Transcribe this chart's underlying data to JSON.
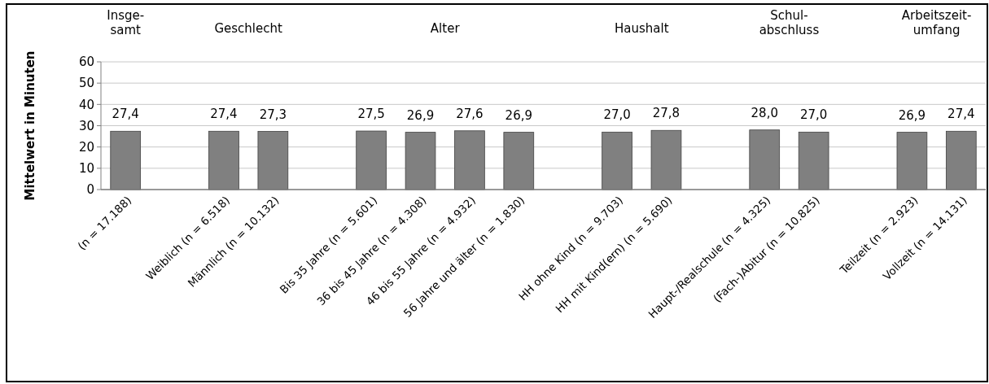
{
  "chart_data": {
    "type": "bar",
    "ylabel": "Mittelwert in Minuten",
    "categories": [
      "(n = 17.188)",
      null,
      "Weiblich (n = 6.518)",
      "Männlich (n = 10.132)",
      null,
      "Bis 35 Jahre (n = 5.601)",
      "36 bis 45 Jahre (n = 4.308)",
      "46 bis 55 Jahre (n = 4.932)",
      "56 Jahre und älter  (n = 1.830)",
      null,
      "HH ohne Kind (n = 9.703)",
      "HH mit Kind(ern) (n = 5.690)",
      null,
      "Haupt-/Realschule (n = 4.325)",
      "(Fach-)Abitur (n = 10.825)",
      null,
      "Teilzeit (n = 2.923)",
      "Vollzeit (n = 14.131)"
    ],
    "values": [
      27.4,
      null,
      27.4,
      27.3,
      null,
      27.5,
      26.9,
      27.6,
      26.9,
      null,
      27.0,
      27.8,
      null,
      28.0,
      27.0,
      null,
      26.9,
      27.4
    ],
    "value_labels": [
      "27,4",
      null,
      "27,4",
      "27,3",
      null,
      "27,5",
      "26,9",
      "27,6",
      "26,9",
      null,
      "27,0",
      "27,8",
      null,
      "28,0",
      "27,0",
      null,
      "26,9",
      "27,4"
    ],
    "color": "#808080",
    "ylim": [
      0,
      60
    ],
    "yticks": [
      0,
      10,
      20,
      30,
      40,
      50,
      60
    ],
    "grid": "y",
    "annotations": [
      "Insge-\nsamt",
      "Geschlecht",
      "Alter",
      "Haushalt",
      "Schul-\nabschluss",
      "Arbeitszeit-\numfang"
    ]
  }
}
